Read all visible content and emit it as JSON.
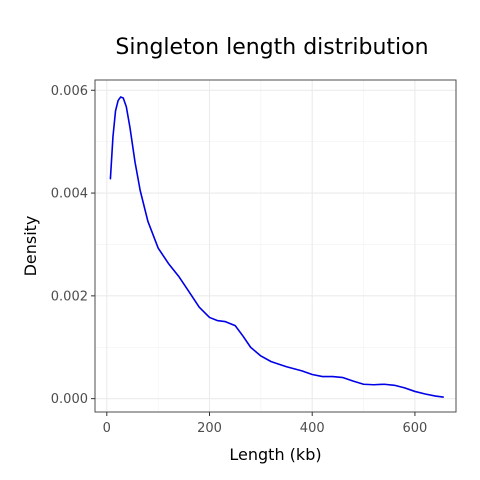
{
  "chart_data": {
    "type": "line",
    "title": "Singleton length distribution",
    "xlabel": "Length (kb)",
    "ylabel": "Density",
    "xlim": [
      -23,
      680
    ],
    "ylim": [
      -0.00026,
      0.0062
    ],
    "x_ticks": [
      0,
      200,
      400,
      600
    ],
    "x_tick_labels": [
      "0",
      "200",
      "400",
      "600"
    ],
    "y_ticks": [
      0,
      0.002,
      0.004,
      0.006
    ],
    "y_tick_labels": [
      "0.000",
      "0.002",
      "0.004",
      "0.006"
    ],
    "x_minor": [
      100,
      300,
      500
    ],
    "y_minor": [
      0.001,
      0.003,
      0.005
    ],
    "grid": true,
    "legend": "none",
    "line_color": "#0000e6",
    "series": [
      {
        "x": [
          7,
          12,
          17,
          22,
          27,
          32,
          38,
          45,
          55,
          65,
          80,
          100,
          120,
          140,
          160,
          180,
          200,
          215,
          230,
          250,
          265,
          280,
          300,
          320,
          350,
          380,
          400,
          420,
          440,
          460,
          480,
          500,
          520,
          540,
          560,
          580,
          600,
          620,
          640,
          655
        ],
        "y": [
          0.00428,
          0.0051,
          0.0056,
          0.0058,
          0.00587,
          0.00585,
          0.00568,
          0.00528,
          0.0046,
          0.00405,
          0.00345,
          0.00293,
          0.00263,
          0.00238,
          0.00208,
          0.00178,
          0.00158,
          0.00152,
          0.0015,
          0.00142,
          0.00122,
          0.001,
          0.00083,
          0.00072,
          0.00062,
          0.00054,
          0.00047,
          0.00043,
          0.00043,
          0.00041,
          0.00034,
          0.00028,
          0.00027,
          0.00028,
          0.00026,
          0.00021,
          0.00014,
          9e-05,
          5e-05,
          3e-05
        ]
      }
    ]
  }
}
